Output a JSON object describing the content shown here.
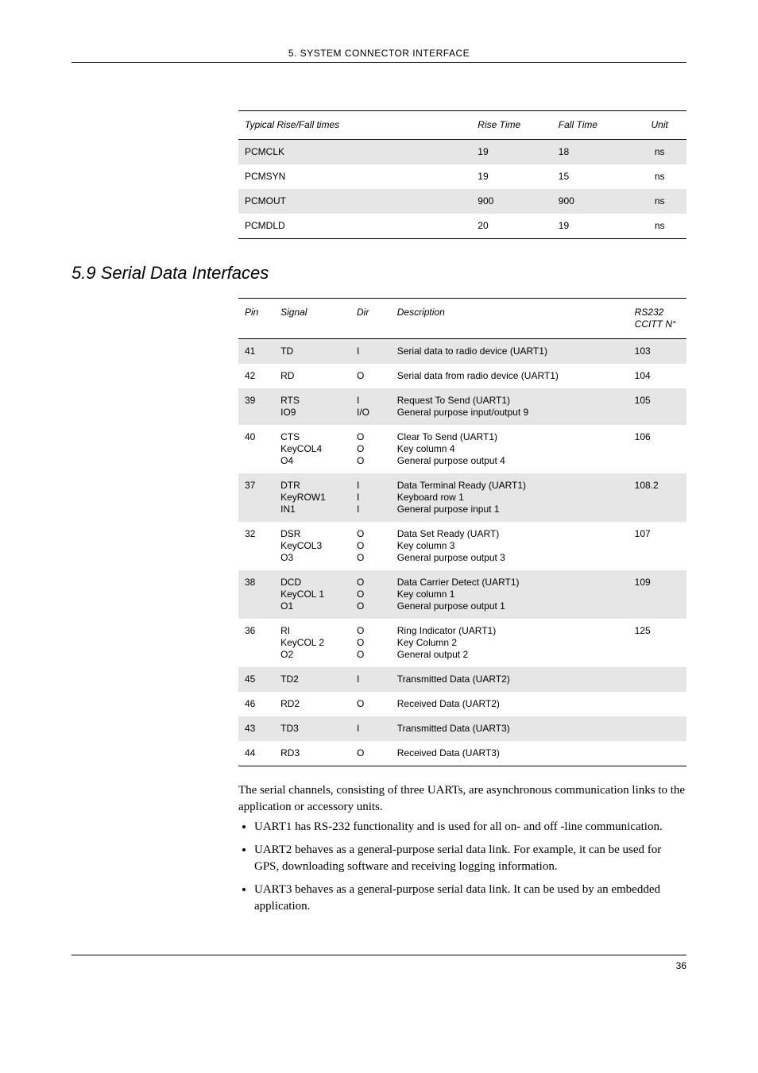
{
  "header": {
    "chapter_title": "5. SYSTEM CONNECTOR INTERFACE"
  },
  "table1": {
    "columns": [
      "Typical Rise/Fall times",
      "Rise Time",
      "Fall Time",
      "Unit"
    ],
    "rows": [
      {
        "cells": [
          "PCMCLK",
          "19",
          "18",
          "ns"
        ],
        "shaded": true
      },
      {
        "cells": [
          "PCMSYN",
          "19",
          "15",
          "ns"
        ],
        "shaded": false
      },
      {
        "cells": [
          "PCMOUT",
          "900",
          "900",
          "ns"
        ],
        "shaded": true
      },
      {
        "cells": [
          "PCMDLD",
          "20",
          "19",
          "ns"
        ],
        "shaded": false
      }
    ]
  },
  "section_title": "5.9 Serial Data Interfaces",
  "table2": {
    "columns": [
      "Pin",
      "Signal",
      "Dir",
      "Description",
      "RS232\nCCITT N°"
    ],
    "rows": [
      {
        "cells": [
          "41",
          "TD",
          "I",
          "Serial data to radio device (UART1)",
          "103"
        ],
        "shaded": true
      },
      {
        "cells": [
          "42",
          "RD",
          "O",
          "Serial data from radio device (UART1)",
          "104"
        ],
        "shaded": false
      },
      {
        "cells": [
          "39",
          "RTS\nIO9",
          "I\nI/O",
          "Request To Send (UART1)\nGeneral purpose input/output 9",
          "105"
        ],
        "shaded": true
      },
      {
        "cells": [
          "40",
          "CTS\nKeyCOL4\nO4",
          "O\nO\nO",
          "Clear To Send (UART1)\nKey column 4\nGeneral purpose output 4",
          "106"
        ],
        "shaded": false
      },
      {
        "cells": [
          "37",
          "DTR\nKeyROW1\nIN1",
          "I\nI\nI",
          "Data Terminal Ready (UART1)\nKeyboard row 1\nGeneral purpose input 1",
          "108.2"
        ],
        "shaded": true
      },
      {
        "cells": [
          "32",
          "DSR\nKeyCOL3\nO3",
          "O\nO\nO",
          "Data Set Ready (UART)\nKey column 3\nGeneral purpose output 3",
          "107"
        ],
        "shaded": false
      },
      {
        "cells": [
          "38",
          "DCD\nKeyCOL 1\nO1",
          "O\nO\nO",
          "Data Carrier Detect (UART1)\nKey column 1\nGeneral purpose output 1",
          "109"
        ],
        "shaded": true
      },
      {
        "cells": [
          "36",
          "RI\nKeyCOL 2\nO2",
          "O\nO\nO",
          "Ring Indicator (UART1)\nKey Column 2\nGeneral output 2",
          "125"
        ],
        "shaded": false
      },
      {
        "cells": [
          "45",
          "TD2",
          "I",
          "Transmitted Data (UART2)",
          ""
        ],
        "shaded": true
      },
      {
        "cells": [
          "46",
          "RD2",
          "O",
          "Received Data (UART2)",
          ""
        ],
        "shaded": false
      },
      {
        "cells": [
          "43",
          "TD3",
          "I",
          "Transmitted Data (UART3)",
          ""
        ],
        "shaded": true
      },
      {
        "cells": [
          "44",
          "RD3",
          "O",
          "Received Data (UART3)",
          ""
        ],
        "shaded": false
      }
    ]
  },
  "body": {
    "intro": "The serial channels, consisting of three UARTs, are asynchronous communication links to the application or accessory units.",
    "bullets": [
      "UART1 has RS-232 functionality and is used for all on- and off -line communication.",
      "UART2 behaves as a general-purpose serial data link. For example, it can be used for GPS, downloading software and receiving logging information.",
      "UART3 behaves as a general-purpose serial data link. It can be used by an embedded application."
    ]
  },
  "footer": {
    "page_number": "36"
  }
}
